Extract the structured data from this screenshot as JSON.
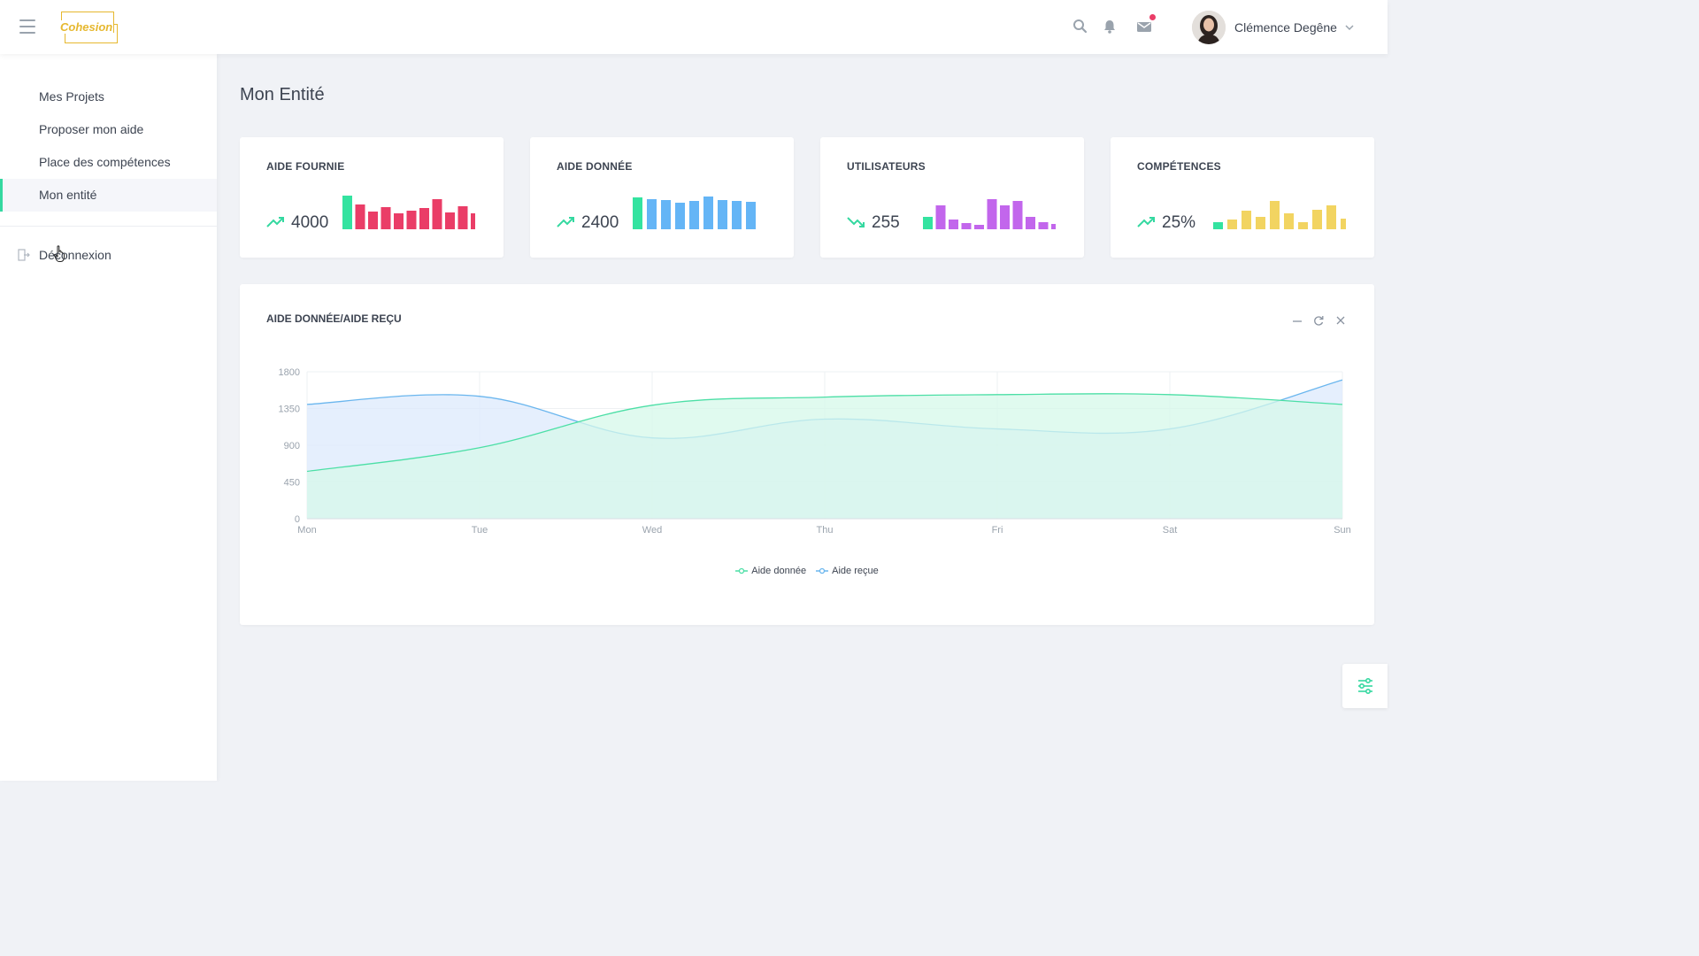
{
  "header": {
    "logo_text": "Cohesion",
    "user_name": "Clémence Degêne"
  },
  "sidebar": {
    "items": [
      {
        "label": "Mes Projets"
      },
      {
        "label": "Proposer mon aide"
      },
      {
        "label": "Place des compétences"
      },
      {
        "label": "Mon entité"
      }
    ],
    "logout_label": "Déconnexion",
    "active_index": 3
  },
  "page": {
    "title": "Mon Entité"
  },
  "cards": [
    {
      "title": "AIDE FOURNIE",
      "value": "4000",
      "trend": "up",
      "color": "#ea3d67",
      "first_color": "#34e3a0",
      "bars": [
        38,
        28,
        20,
        25,
        18,
        21,
        24,
        34,
        19,
        26,
        18
      ]
    },
    {
      "title": "AIDE DONNÉE",
      "value": "2400",
      "trend": "up",
      "color": "#64b5f6",
      "first_color": "#34e3a0",
      "bars": [
        36,
        34,
        33,
        30,
        32,
        37,
        33,
        32,
        31
      ]
    },
    {
      "title": "UTILISATEURS",
      "value": "255",
      "trend": "down",
      "color": "#c266ec",
      "first_color": "#34e3a0",
      "bars": [
        14,
        27,
        11,
        7,
        5,
        34,
        27,
        32,
        14,
        8,
        6
      ]
    },
    {
      "title": "COMPÉTENCES",
      "value": "25%",
      "trend": "up",
      "color": "#f2d461",
      "first_color": "#34e3a0",
      "bars": [
        8,
        11,
        21,
        14,
        32,
        18,
        8,
        22,
        27,
        12
      ]
    }
  ],
  "colors": {
    "accent": "#34d8a0",
    "trend_up": "#34d8a0",
    "notification_dot": "#ea3d67"
  },
  "chart": {
    "title": "AIDE DONNÉE/AIDE REÇU"
  },
  "chart_data": {
    "type": "area",
    "categories": [
      "Mon",
      "Tue",
      "Wed",
      "Thu",
      "Fri",
      "Sat",
      "Sun"
    ],
    "ylim": [
      0,
      1800
    ],
    "yticks": [
      "0",
      "450",
      "900",
      "1350",
      "1800"
    ],
    "grid": true,
    "legend": "bottom-center",
    "series": [
      {
        "name": "Aide donnée",
        "values": [
          580,
          870,
          1390,
          1490,
          1520,
          1520,
          1400
        ],
        "color": "#4cdfa6",
        "fill": "#d6f8ea"
      },
      {
        "name": "Aide reçue",
        "values": [
          1400,
          1500,
          990,
          1220,
          1100,
          1100,
          1700
        ],
        "color": "#6ab6ee",
        "fill": "#dceafc"
      }
    ]
  }
}
